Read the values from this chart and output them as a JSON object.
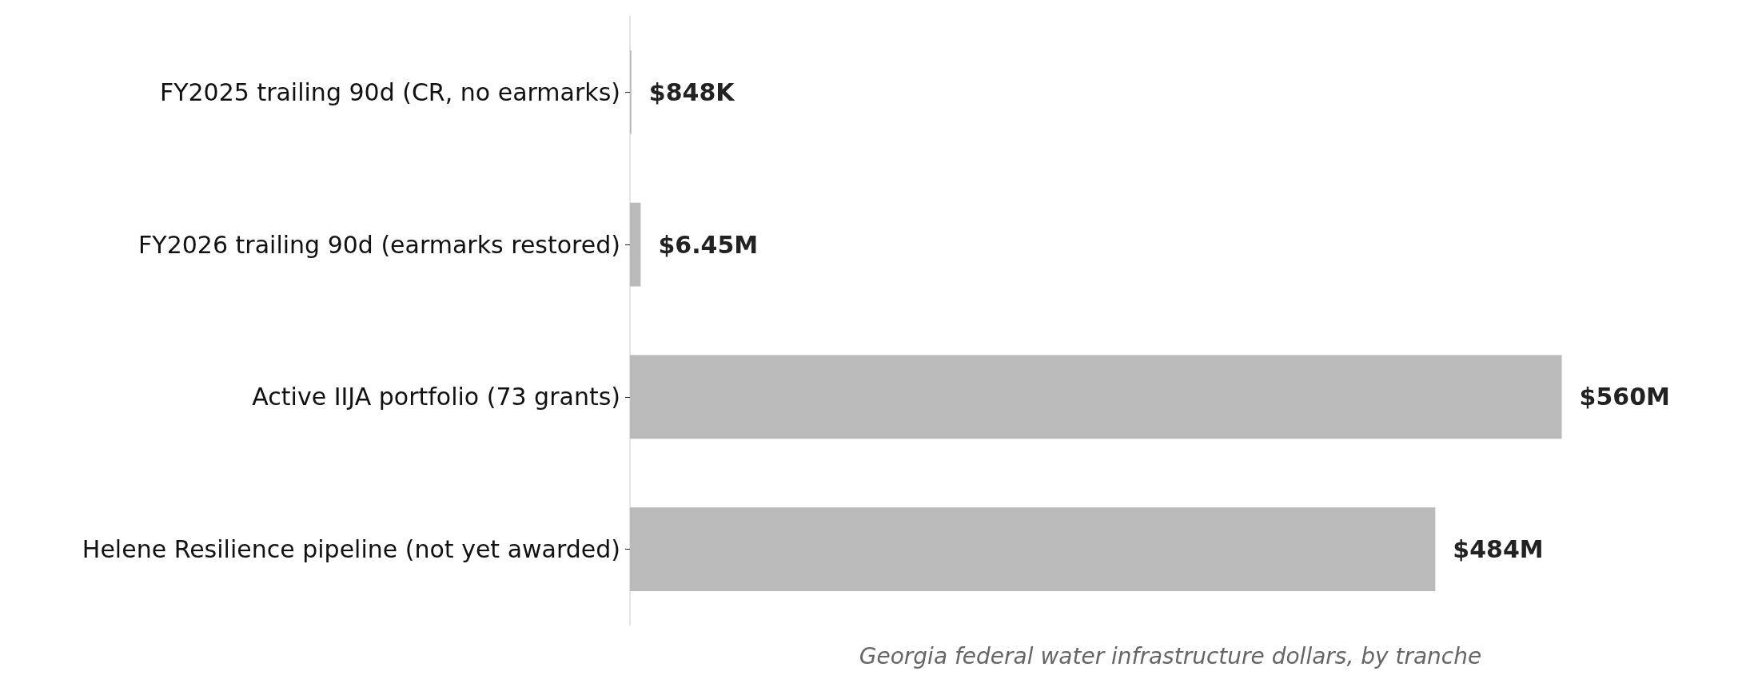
{
  "chart_data": {
    "type": "bar",
    "orientation": "horizontal",
    "xlabel": "Georgia federal water infrastructure dollars, by tranche",
    "categories": [
      "FY2025 trailing 90d (CR, no earmarks)",
      "FY2026 trailing 90d (earmarks restored)",
      "Active IIJA portfolio (73 grants)",
      "Helene Resilience pipeline (not yet awarded)"
    ],
    "values": [
      848000,
      6450000,
      560000000,
      484000000
    ],
    "value_labels": [
      "$848K",
      "$6.45M",
      "$560M",
      "$484M"
    ],
    "color": "#bababa",
    "grid": false
  }
}
